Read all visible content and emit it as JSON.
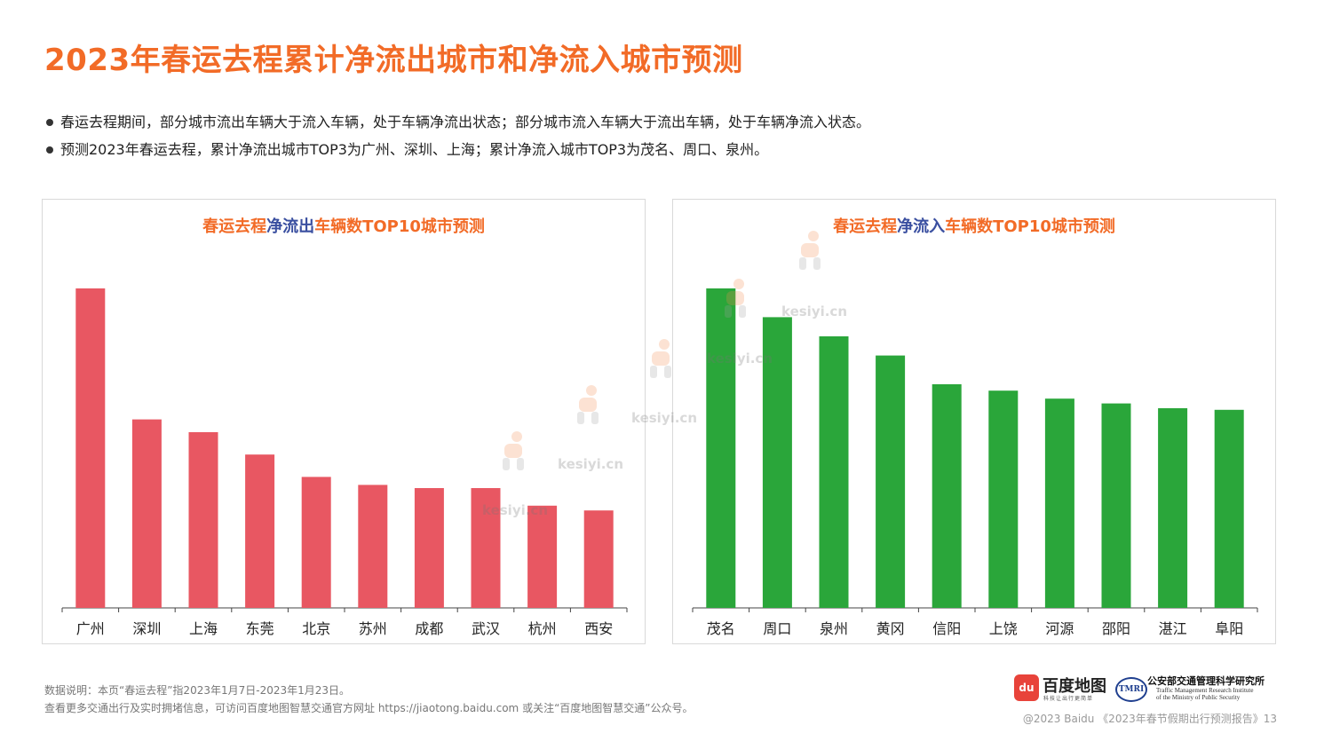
{
  "page": {
    "title": "2023年春运去程累计净流出城市和净流入城市预测",
    "bullets": [
      "春运去程期间，部分城市流出车辆大于流入车辆，处于车辆净流出状态；部分城市流入车辆大于流出车辆，处于车辆净流入状态。",
      "预测2023年春运去程，累计净流出城市TOP3为广州、深圳、上海；累计净流入城市TOP3为茂名、周口、泉州。"
    ]
  },
  "colors": {
    "title": "#f26b27",
    "title_highlight": "#3a4fa0",
    "outflow_bar": "#e85762",
    "inflow_bar": "#2aa63a"
  },
  "chart_data": [
    {
      "type": "bar",
      "title_parts": [
        "春运去程",
        "净流出",
        "车辆数TOP10城市预测"
      ],
      "categories": [
        "广州",
        "深圳",
        "上海",
        "东莞",
        "北京",
        "苏州",
        "成都",
        "武汉",
        "杭州",
        "西安"
      ],
      "values": [
        100,
        59,
        55,
        48,
        41,
        38.5,
        37.5,
        37.5,
        32,
        30.5
      ],
      "ylim": [
        0,
        100
      ],
      "y_axis_visible": false,
      "grid": false,
      "legend": "none"
    },
    {
      "type": "bar",
      "title_parts": [
        "春运去程",
        "净流入",
        "车辆数TOP10城市预测"
      ],
      "categories": [
        "茂名",
        "周口",
        "泉州",
        "黄冈",
        "信阳",
        "上饶",
        "河源",
        "邵阳",
        "湛江",
        "阜阳"
      ],
      "values": [
        100,
        91,
        85,
        79,
        70,
        68,
        65.5,
        64,
        62.5,
        62
      ],
      "ylim": [
        0,
        100
      ],
      "y_axis_visible": false,
      "grid": false,
      "legend": "none"
    }
  ],
  "watermark": {
    "text": "kesiyi.cn"
  },
  "footer": {
    "note1": "数据说明：本页“春运去程”指2023年1月7日-2023年1月23日。",
    "note2": "查看更多交通出行及实时拥堵信息，可访问百度地图智慧交通官方网址 https://jiaotong.baidu.com 或关注“百度地图智慧交通”公众号。",
    "copyright": "@2023 Baidu 《2023年春节假期出行预测报告》13"
  },
  "logos": {
    "baidu_pin": "du",
    "baidu_name": "百度地图",
    "baidu_slogan": "科技让出行更简单",
    "tmri_badge": "TMRI",
    "tmri_name": "公安部交通管理科学研究所",
    "tmri_en_line1": "Traffic Management Research Institute",
    "tmri_en_line2": "of the Ministry of Public Security"
  }
}
